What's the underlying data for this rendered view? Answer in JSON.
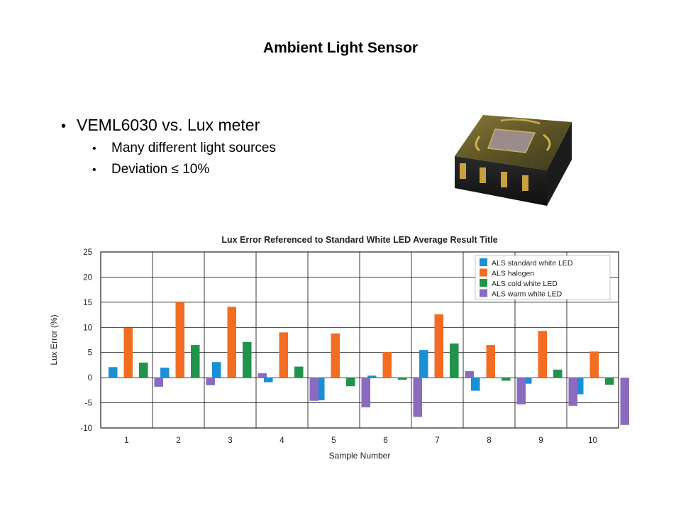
{
  "slide": {
    "title": "Ambient Light Sensor",
    "bullets": [
      {
        "text": "VEML6030 vs. Lux meter",
        "sub": [
          "Many different light sources",
          "Deviation ≤ 10%"
        ]
      }
    ]
  },
  "image": {
    "icon": "sensor-chip-photo"
  },
  "chart_data": {
    "type": "bar",
    "title": "Lux Error Referenced to Standard White LED Average Result Title",
    "xlabel": "Sample Number",
    "ylabel": "Lux Error (%)",
    "ylim": [
      -10,
      25
    ],
    "yticks": [
      25,
      20,
      15,
      10,
      5,
      0,
      -5,
      -10
    ],
    "grid": true,
    "legend_position": "top-right",
    "categories": [
      "1",
      "2",
      "3",
      "4",
      "5",
      "6",
      "7",
      "8",
      "9",
      "10"
    ],
    "series": [
      {
        "name": "ALS standard white LED",
        "color": "#1b8fd6",
        "values": [
          2.1,
          2.0,
          3.1,
          -0.9,
          -4.5,
          0.4,
          5.5,
          -2.6,
          -1.2,
          -3.3
        ]
      },
      {
        "name": "ALS halogen",
        "color": "#f26c21",
        "values": [
          9.9,
          15.0,
          14.1,
          9.0,
          8.8,
          5.1,
          12.6,
          6.5,
          9.3,
          5.2
        ]
      },
      {
        "name": "ALS cold white LED",
        "color": "#21934a",
        "values": [
          3.0,
          6.5,
          7.1,
          2.2,
          -1.7,
          -0.4,
          6.8,
          -0.6,
          1.6,
          -1.4
        ]
      },
      {
        "name": "ALS warm white LED",
        "color": "#8b6bc0",
        "values": [
          -1.8,
          -1.5,
          0.9,
          -4.6,
          -5.9,
          -7.8,
          1.3,
          -5.3,
          -5.6,
          -9.4
        ]
      }
    ]
  }
}
